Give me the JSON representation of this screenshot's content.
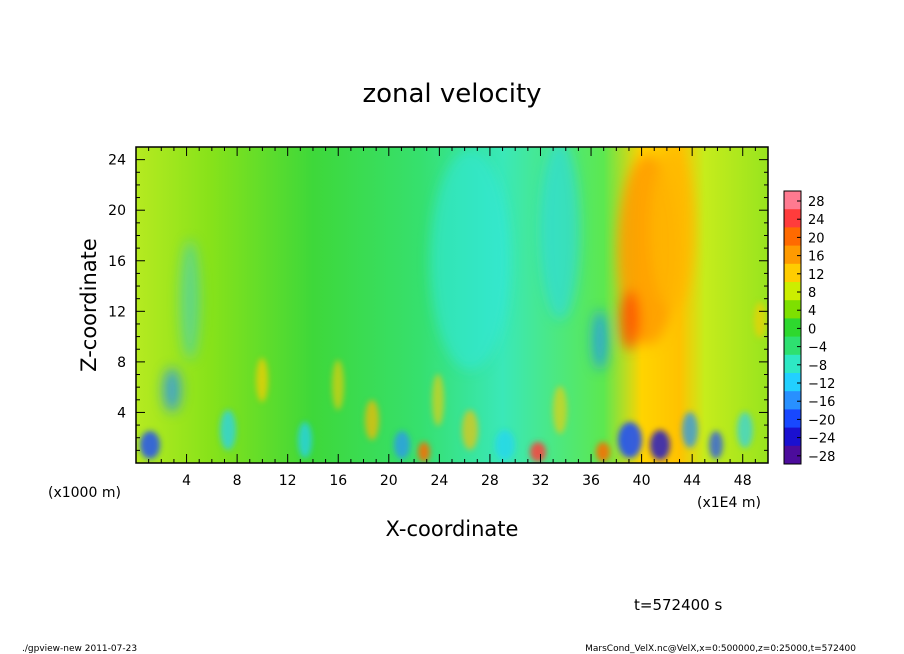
{
  "chart_data": {
    "type": "heatmap",
    "title": "zonal velocity",
    "xlabel": "X-coordinate",
    "ylabel": "Z-coordinate",
    "x_unit_note": "(x1E4 m)",
    "y_unit_note": "(x1000 m)",
    "xlim": [
      0,
      50
    ],
    "ylim": [
      0,
      25
    ],
    "x_ticks": [
      "4",
      "8",
      "12",
      "16",
      "20",
      "24",
      "28",
      "32",
      "36",
      "40",
      "44",
      "48"
    ],
    "x_tick_values": [
      4,
      8,
      12,
      16,
      20,
      24,
      28,
      32,
      36,
      40,
      44,
      48
    ],
    "y_ticks": [
      "4",
      "8",
      "12",
      "16",
      "20",
      "24"
    ],
    "y_tick_values": [
      4,
      8,
      12,
      16,
      20,
      24
    ],
    "colorbar_levels": [
      "28",
      "24",
      "20",
      "16",
      "12",
      "8",
      "4",
      "0",
      "−4",
      "−8",
      "−12",
      "−16",
      "−20",
      "−24",
      "−28"
    ],
    "colorbar_colors": [
      "#ff7a90",
      "#ff3c3c",
      "#ff6a00",
      "#ff9a00",
      "#ffcc00",
      "#ccee00",
      "#7ee000",
      "#2ed82e",
      "#2ee070",
      "#2ee8c4",
      "#22d0ff",
      "#2890ff",
      "#1848ff",
      "#1a10d0",
      "#4c0c9c"
    ],
    "time_label": "t=572400 s",
    "grid": false
  },
  "footer": {
    "left": "./gpview-new  2011-07-23",
    "right": "MarsCond_VelX.nc@VelX,x=0:500000,z=0:25000,t=572400"
  }
}
